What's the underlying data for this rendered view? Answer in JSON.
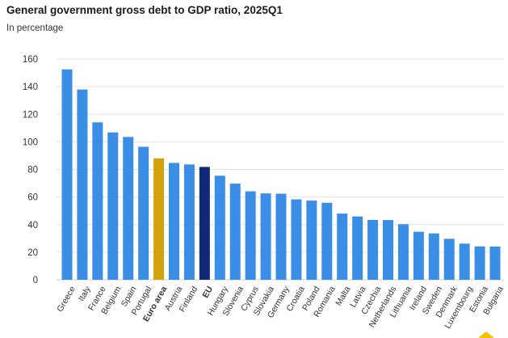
{
  "chart_data": {
    "type": "bar",
    "title": "General government gross debt to GDP ratio, 2025Q1",
    "subtitle": "In percentage",
    "xlabel": "",
    "ylabel": "",
    "ylim": [
      0,
      160
    ],
    "yticks": [
      "0",
      "20",
      "40",
      "60",
      "80",
      "100",
      "120",
      "140",
      "160"
    ],
    "grid": true,
    "categories": [
      "Greece",
      "Italy",
      "France",
      "Belgium",
      "Spain",
      "Portugal",
      "Euro area",
      "Austria",
      "Finland",
      "EU",
      "Hungary",
      "Slovenia",
      "Cyprus",
      "Slovakia",
      "Germany",
      "Croatia",
      "Poland",
      "Romania",
      "Malta",
      "Latvia",
      "Czechia",
      "Netherlands",
      "Lithuania",
      "Ireland",
      "Sweden",
      "Denmark",
      "Luxembourg",
      "Estonia",
      "Bulgaria"
    ],
    "values": [
      152.5,
      137.9,
      114.1,
      106.8,
      103.5,
      96.4,
      88.0,
      84.7,
      83.6,
      81.8,
      75.4,
      69.7,
      64.1,
      62.6,
      62.4,
      58.3,
      57.4,
      55.8,
      48.0,
      45.9,
      43.4,
      43.3,
      40.3,
      34.8,
      33.6,
      29.7,
      26.2,
      24.2,
      24.1
    ],
    "bold_categories": [
      "Euro area",
      "EU"
    ],
    "colors": {
      "default": "#3a8ee6",
      "Euro area": "#d4a20a",
      "EU": "#0e2a78",
      "grid": "#e3e3e3",
      "axis_text": "#333333"
    }
  }
}
